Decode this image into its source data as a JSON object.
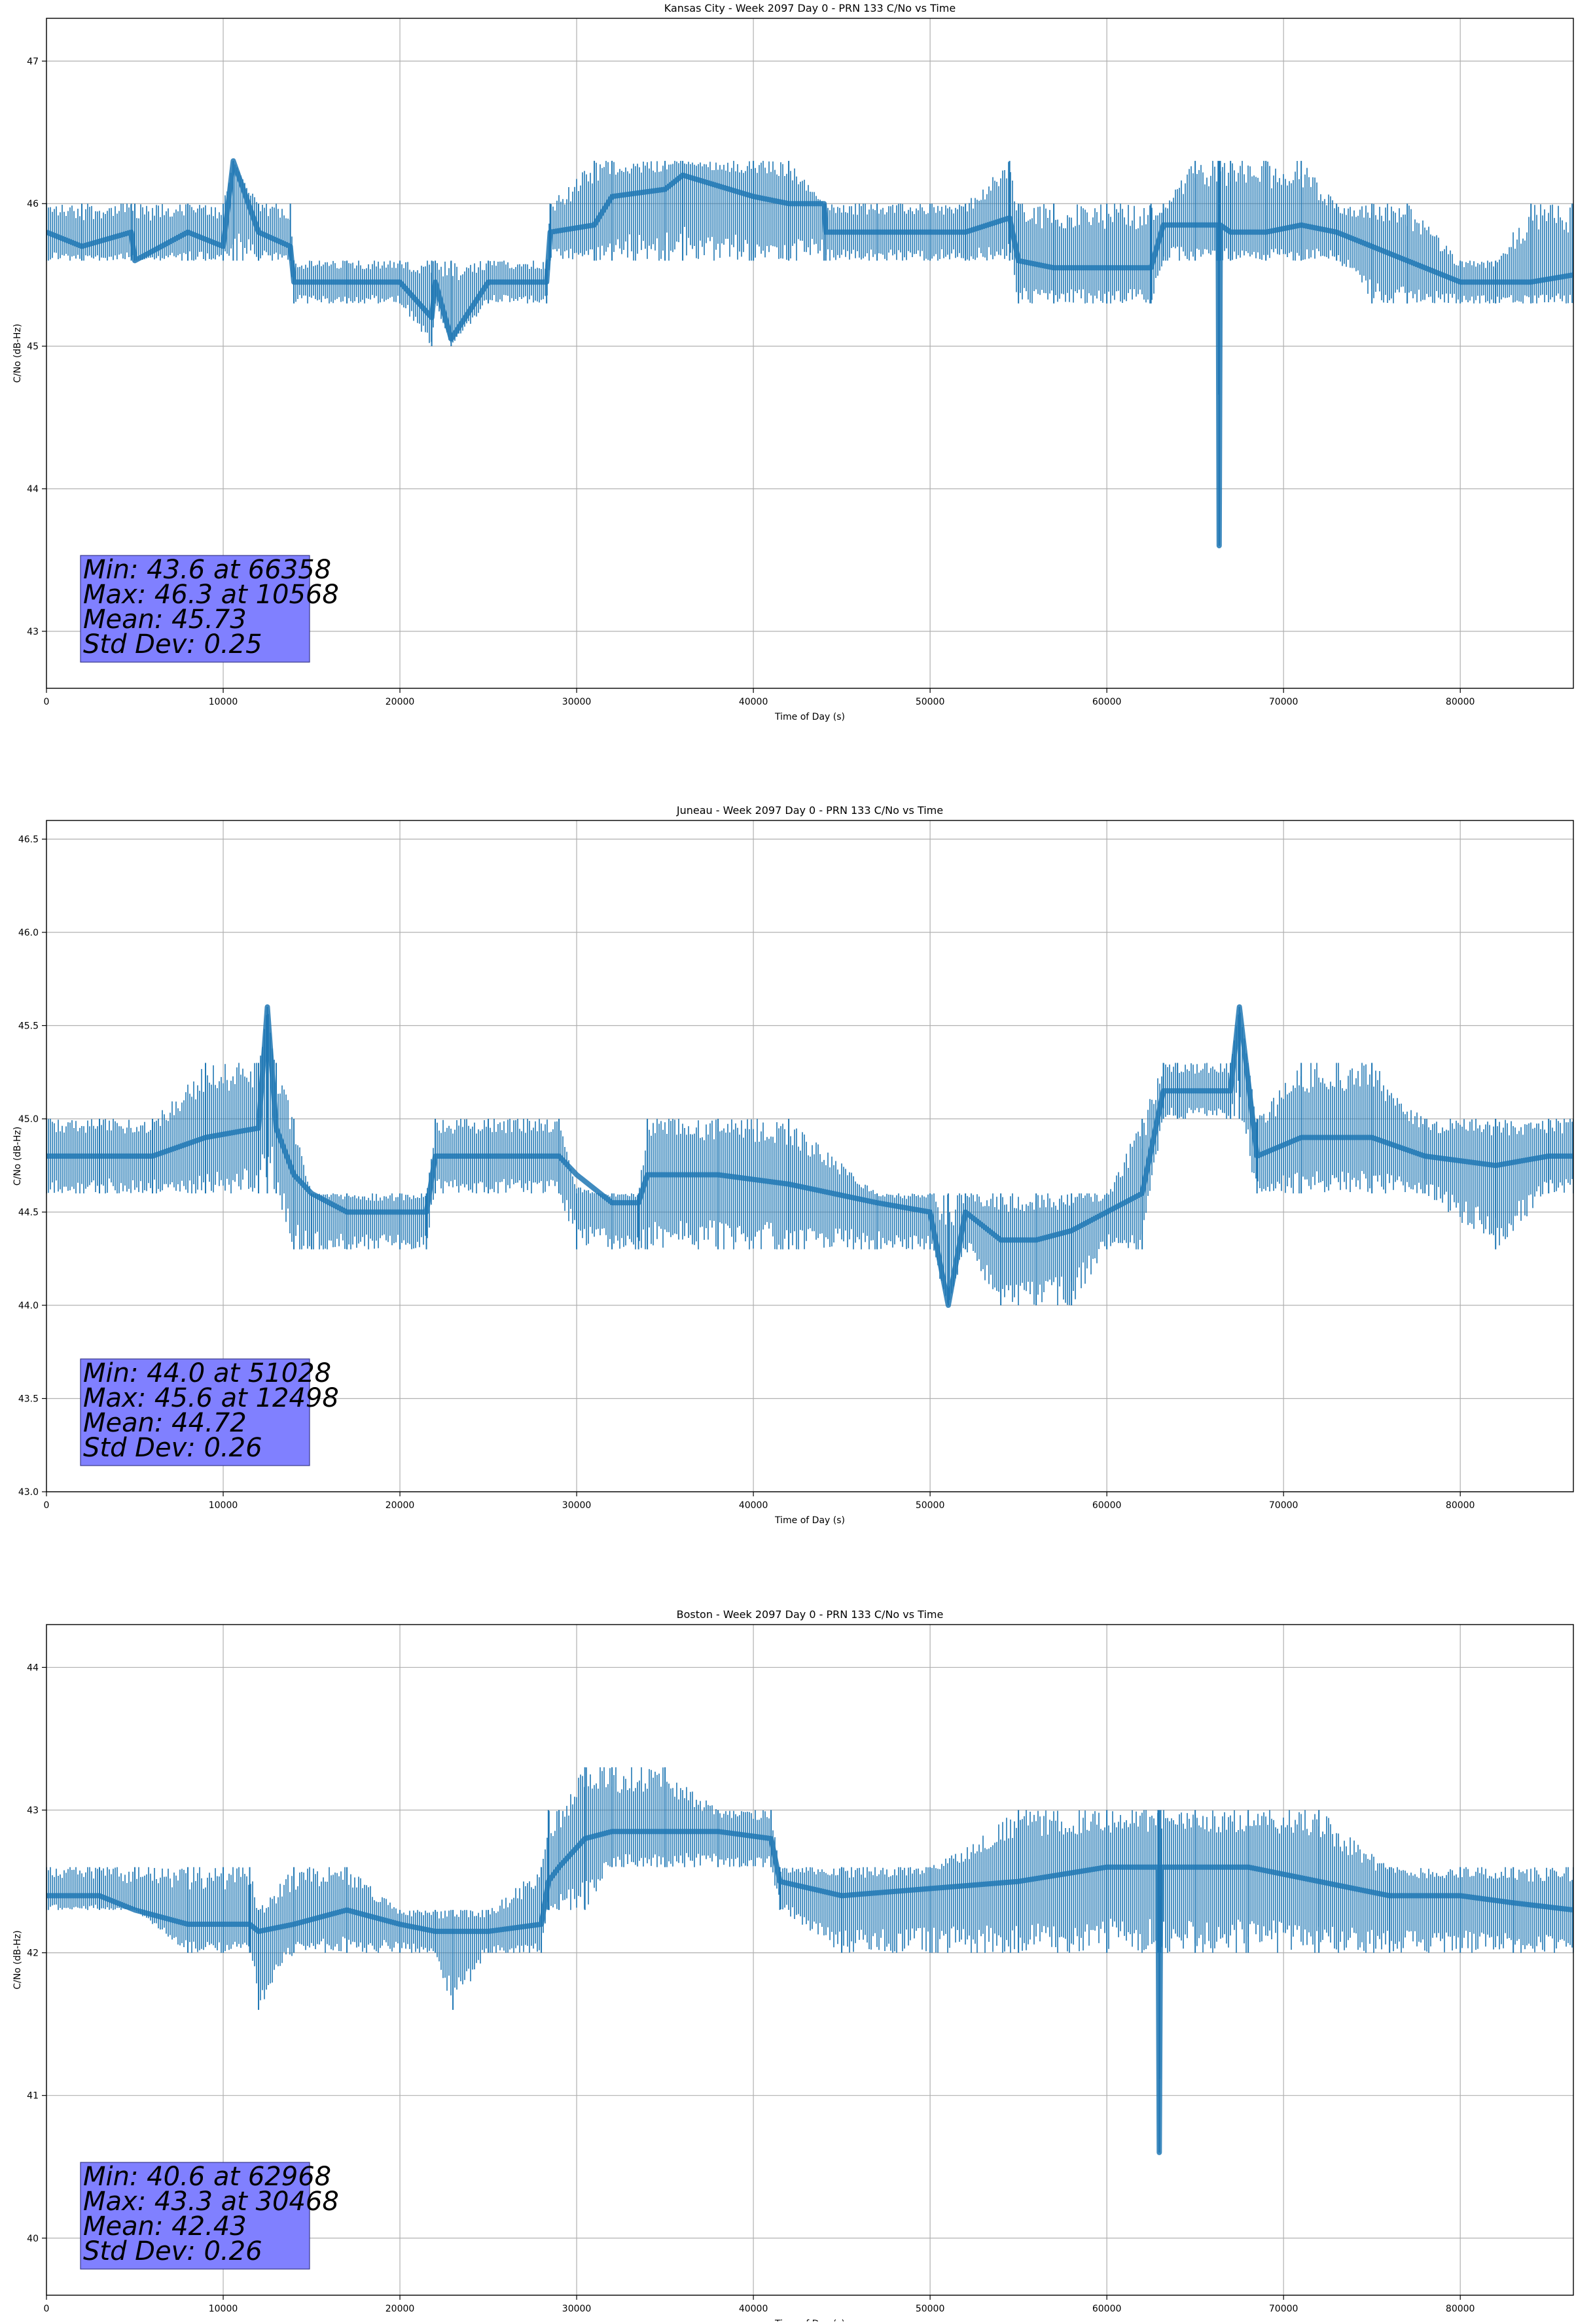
{
  "chart_data": [
    {
      "type": "line",
      "title": "Kansas City - Week 2097 Day 0 - PRN 133 C/No vs Time",
      "xlabel": "Time of Day (s)",
      "ylabel": "C/No (dB-Hz)",
      "xlim": [
        0,
        86400
      ],
      "ylim": [
        42.6,
        47.3
      ],
      "xticks": [
        0,
        10000,
        20000,
        30000,
        40000,
        50000,
        60000,
        70000,
        80000
      ],
      "yticks": [
        43,
        44,
        45,
        46,
        47
      ],
      "ytick_labels": [
        "43",
        "44",
        "45",
        "46",
        "47"
      ],
      "grid": true,
      "series_color": "#1f77b4",
      "series": [
        {
          "x": [
            0,
            2000,
            4800,
            5000,
            8000,
            10000,
            10568,
            12000,
            13800,
            14000,
            17000,
            20000,
            21800,
            22000,
            22900,
            25000,
            28300,
            28500,
            31000,
            32000,
            35000,
            36000,
            40000,
            42000,
            44000,
            44100,
            47000,
            50000,
            52000,
            54500,
            55000,
            57000,
            60000,
            62500,
            63200,
            65000,
            66300,
            66358,
            66420,
            67000,
            69000,
            71000,
            73000,
            75000,
            77000,
            80000,
            82000,
            84000,
            86400
          ],
          "y": [
            45.8,
            45.7,
            45.8,
            45.6,
            45.8,
            45.7,
            46.3,
            45.8,
            45.7,
            45.45,
            45.45,
            45.45,
            45.2,
            45.45,
            45.05,
            45.45,
            45.45,
            45.8,
            45.85,
            46.05,
            46.1,
            46.2,
            46.05,
            46.0,
            46.0,
            45.8,
            45.8,
            45.8,
            45.8,
            45.9,
            45.6,
            45.55,
            45.55,
            45.55,
            45.85,
            45.85,
            45.85,
            43.6,
            45.85,
            45.8,
            45.8,
            45.85,
            45.8,
            45.7,
            45.6,
            45.45,
            45.45,
            45.45,
            45.5
          ],
          "band_min": [
            45.6,
            45.6,
            45.6,
            45.6,
            45.6,
            45.6,
            45.6,
            45.6,
            45.6,
            45.3,
            45.3,
            45.3,
            45.0,
            45.3,
            45.0,
            45.3,
            45.3,
            45.6,
            45.6,
            45.6,
            45.6,
            45.6,
            45.6,
            45.6,
            45.6,
            45.6,
            45.6,
            45.6,
            45.6,
            45.6,
            45.3,
            45.3,
            45.3,
            45.3,
            45.6,
            45.6,
            45.6,
            43.6,
            45.6,
            45.6,
            45.6,
            45.6,
            45.6,
            45.3,
            45.3,
            45.3,
            45.3,
            45.3,
            45.3
          ],
          "band_max": [
            46.0,
            46.0,
            46.0,
            46.0,
            46.0,
            46.0,
            46.3,
            46.0,
            46.0,
            45.6,
            45.6,
            45.6,
            45.6,
            45.6,
            45.6,
            45.6,
            45.6,
            46.0,
            46.3,
            46.3,
            46.3,
            46.3,
            46.3,
            46.3,
            46.0,
            46.0,
            46.0,
            46.0,
            46.0,
            46.3,
            46.0,
            46.0,
            46.0,
            46.0,
            46.0,
            46.3,
            46.3,
            46.3,
            46.3,
            46.3,
            46.3,
            46.3,
            46.0,
            46.0,
            46.0,
            45.6,
            45.6,
            46.0,
            46.0
          ]
        }
      ],
      "stats": [
        "Min: 43.6 at 66358",
        "Max: 46.3 at 10568",
        "Mean: 45.73",
        "Std Dev: 0.25"
      ]
    },
    {
      "type": "line",
      "title": "Juneau - Week 2097 Day 0 - PRN 133 C/No vs Time",
      "xlabel": "Time of Day (s)",
      "ylabel": "C/No (dB-Hz)",
      "xlim": [
        0,
        86400
      ],
      "ylim": [
        43.0,
        46.6
      ],
      "xticks": [
        0,
        10000,
        20000,
        30000,
        40000,
        50000,
        60000,
        70000,
        80000
      ],
      "yticks": [
        43.0,
        43.5,
        44.0,
        44.5,
        45.0,
        45.5,
        46.0,
        46.5
      ],
      "ytick_labels": [
        "43.0",
        "43.5",
        "44.0",
        "44.5",
        "45.0",
        "45.5",
        "46.0",
        "46.5"
      ],
      "grid": true,
      "series_color": "#1f77b4",
      "series": [
        {
          "x": [
            0,
            3000,
            6000,
            9000,
            12000,
            12498,
            13000,
            14000,
            15000,
            17000,
            20000,
            21500,
            22000,
            25000,
            29000,
            30000,
            32000,
            33500,
            34000,
            38000,
            42000,
            47000,
            50000,
            51028,
            52000,
            54000,
            56000,
            58000,
            60000,
            62000,
            63200,
            64000,
            67000,
            67500,
            68500,
            71000,
            75000,
            78000,
            82000,
            85000,
            86400
          ],
          "y": [
            44.8,
            44.8,
            44.8,
            44.9,
            44.95,
            45.6,
            44.95,
            44.7,
            44.6,
            44.5,
            44.5,
            44.5,
            44.8,
            44.8,
            44.8,
            44.7,
            44.55,
            44.55,
            44.7,
            44.7,
            44.65,
            44.55,
            44.5,
            44.0,
            44.5,
            44.35,
            44.35,
            44.4,
            44.5,
            44.6,
            45.15,
            45.15,
            45.15,
            45.6,
            44.8,
            44.9,
            44.9,
            44.8,
            44.75,
            44.8,
            44.8
          ],
          "band_min": [
            44.6,
            44.6,
            44.6,
            44.6,
            44.6,
            44.6,
            44.6,
            44.3,
            44.3,
            44.3,
            44.3,
            44.3,
            44.6,
            44.6,
            44.6,
            44.3,
            44.3,
            44.3,
            44.3,
            44.3,
            44.3,
            44.3,
            44.3,
            44.0,
            44.3,
            44.0,
            44.0,
            44.0,
            44.3,
            44.3,
            45.0,
            45.0,
            45.0,
            45.0,
            44.6,
            44.6,
            44.6,
            44.6,
            44.3,
            44.6,
            44.6
          ],
          "band_max": [
            45.0,
            45.0,
            45.0,
            45.3,
            45.3,
            45.6,
            45.3,
            45.0,
            44.6,
            44.6,
            44.6,
            44.6,
            45.0,
            45.0,
            45.0,
            44.6,
            44.6,
            44.6,
            45.0,
            45.0,
            45.0,
            44.6,
            44.6,
            44.6,
            44.6,
            44.6,
            44.6,
            44.6,
            44.6,
            45.0,
            45.3,
            45.3,
            45.3,
            45.6,
            45.0,
            45.3,
            45.3,
            45.0,
            45.0,
            45.0,
            45.0
          ]
        }
      ],
      "stats": [
        "Min: 44.0 at 51028",
        "Max: 45.6 at 12498",
        "Mean: 44.72",
        "Std Dev: 0.26"
      ]
    },
    {
      "type": "line",
      "title": "Boston - Week 2097 Day 0 - PRN 133 C/No vs Time",
      "xlabel": "Time of Day (s)",
      "ylabel": "C/No (dB-Hz)",
      "xlim": [
        0,
        86400
      ],
      "ylim": [
        39.6,
        44.3
      ],
      "xticks": [
        0,
        10000,
        20000,
        30000,
        40000,
        50000,
        60000,
        70000,
        80000
      ],
      "yticks": [
        40,
        41,
        42,
        43,
        44
      ],
      "ytick_labels": [
        "40",
        "41",
        "42",
        "43",
        "44"
      ],
      "grid": true,
      "series_color": "#1f77b4",
      "series": [
        {
          "x": [
            0,
            3000,
            5000,
            8000,
            10000,
            11500,
            12000,
            14000,
            17000,
            20000,
            22000,
            23000,
            25000,
            28000,
            28400,
            29000,
            30468,
            32000,
            35000,
            38000,
            41000,
            41500,
            45000,
            50000,
            55000,
            60000,
            62900,
            62968,
            63050,
            65000,
            68000,
            72000,
            76000,
            80000,
            83000,
            86400
          ],
          "y": [
            42.4,
            42.4,
            42.3,
            42.2,
            42.2,
            42.2,
            42.15,
            42.2,
            42.3,
            42.2,
            42.15,
            42.15,
            42.15,
            42.2,
            42.5,
            42.6,
            42.8,
            42.85,
            42.85,
            42.85,
            42.8,
            42.5,
            42.4,
            42.45,
            42.5,
            42.6,
            42.6,
            40.6,
            42.6,
            42.6,
            42.6,
            42.5,
            42.4,
            42.4,
            42.35,
            42.3
          ],
          "band_min": [
            42.3,
            42.3,
            42.3,
            42.0,
            42.0,
            42.0,
            41.6,
            42.0,
            42.0,
            42.0,
            42.0,
            41.6,
            42.0,
            42.0,
            42.3,
            42.3,
            42.3,
            42.6,
            42.6,
            42.6,
            42.6,
            42.3,
            42.0,
            42.0,
            42.0,
            42.0,
            42.0,
            40.6,
            42.0,
            42.0,
            42.0,
            42.0,
            42.0,
            42.0,
            42.0,
            42.0
          ],
          "band_max": [
            42.6,
            42.6,
            42.6,
            42.6,
            42.6,
            42.6,
            42.3,
            42.6,
            42.6,
            42.3,
            42.3,
            42.3,
            42.3,
            42.6,
            43.0,
            43.0,
            43.3,
            43.3,
            43.3,
            43.0,
            43.0,
            42.6,
            42.6,
            42.6,
            43.0,
            43.0,
            43.0,
            43.0,
            43.0,
            43.0,
            43.0,
            43.0,
            42.6,
            42.6,
            42.6,
            42.6
          ]
        }
      ],
      "stats": [
        "Min: 40.6 at 62968",
        "Max: 43.3 at 30468",
        "Mean: 42.43",
        "Std Dev: 0.26"
      ]
    }
  ]
}
